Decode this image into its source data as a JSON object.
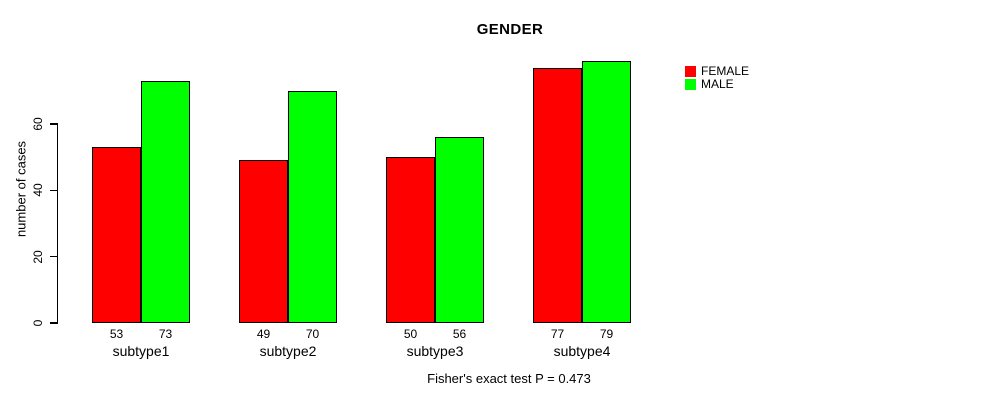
{
  "title": "GENDER",
  "y_axis": {
    "label": "number of cases"
  },
  "caption": "Fisher's exact test P = 0.473",
  "legend": {
    "items": [
      {
        "label": "FEMALE",
        "color": "#ff0000"
      },
      {
        "label": "MALE",
        "color": "#00ff00"
      }
    ]
  },
  "chart_data": {
    "type": "bar",
    "title": "GENDER",
    "xlabel": "",
    "ylabel": "number of cases",
    "categories": [
      "subtype1",
      "subtype2",
      "subtype3",
      "subtype4"
    ],
    "series": [
      {
        "name": "FEMALE",
        "color": "#ff0000",
        "values": [
          53,
          49,
          50,
          77
        ]
      },
      {
        "name": "MALE",
        "color": "#00ff00",
        "values": [
          73,
          70,
          56,
          79
        ]
      }
    ],
    "yticks": [
      0,
      20,
      40,
      60
    ],
    "ylim": [
      0,
      80
    ],
    "bar_value_labels": true,
    "grid": false,
    "legend_position": "outside-top-right",
    "annotation": "Fisher's exact test P = 0.473"
  }
}
